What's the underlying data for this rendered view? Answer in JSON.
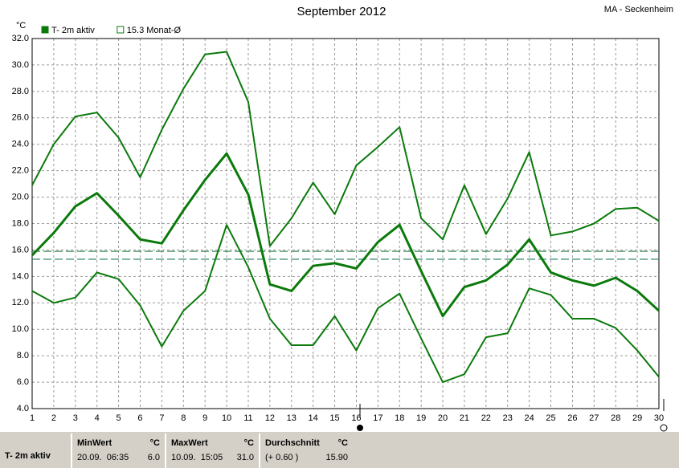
{
  "chart_data": {
    "type": "line",
    "title": "September 2012",
    "station": "MA - Seckenheim",
    "y_unit": "°C",
    "legend": [
      {
        "label": "T- 2m aktiv",
        "filled": true
      },
      {
        "label": "15.3 Monat-Ø",
        "filled": false
      }
    ],
    "x": [
      1,
      2,
      3,
      4,
      5,
      6,
      7,
      8,
      9,
      10,
      11,
      12,
      13,
      14,
      15,
      16,
      17,
      18,
      19,
      20,
      21,
      22,
      23,
      24,
      25,
      26,
      27,
      28,
      29,
      30
    ],
    "xlim": [
      1,
      30
    ],
    "xticks": [
      1,
      2,
      3,
      4,
      5,
      6,
      7,
      8,
      9,
      10,
      11,
      12,
      13,
      14,
      15,
      16,
      17,
      18,
      19,
      20,
      21,
      22,
      23,
      24,
      25,
      26,
      27,
      28,
      29,
      30
    ],
    "ylim": [
      4,
      32
    ],
    "yticks": [
      {
        "value": 4,
        "label": "4.0"
      },
      {
        "value": 6,
        "label": "6.0"
      },
      {
        "value": 8,
        "label": "8.0"
      },
      {
        "value": 10,
        "label": "10.0"
      },
      {
        "value": 12,
        "label": "12.0"
      },
      {
        "value": 14,
        "label": "14.0"
      },
      {
        "value": 16,
        "label": "16.0"
      },
      {
        "value": 18,
        "label": "18.0"
      },
      {
        "value": 20,
        "label": "20.0"
      },
      {
        "value": 22,
        "label": "22.0"
      },
      {
        "value": 24,
        "label": "24.0"
      },
      {
        "value": 26,
        "label": "26.0"
      },
      {
        "value": 28,
        "label": "28.0"
      },
      {
        "value": 30,
        "label": "30.0"
      },
      {
        "value": 32,
        "label": "32.0"
      }
    ],
    "grid": true,
    "series": [
      {
        "color": "#0b7a0b",
        "width": 2,
        "values": [
          20.9,
          24.0,
          26.1,
          26.4,
          24.5,
          21.5,
          25.1,
          28.2,
          30.8,
          31.0,
          27.2,
          16.3,
          18.4,
          21.1,
          18.7,
          22.4,
          23.8,
          25.3,
          18.4,
          16.8,
          20.9,
          17.2,
          19.9,
          23.4,
          17.1,
          17.4,
          18.0,
          19.1,
          19.2,
          18.2
        ]
      },
      {
        "color": "#0b7a0b",
        "width": 3,
        "values": [
          15.6,
          17.3,
          19.3,
          20.3,
          18.6,
          16.8,
          16.5,
          19.0,
          21.3,
          23.3,
          20.2,
          13.4,
          12.9,
          14.8,
          15.0,
          14.6,
          16.6,
          17.9,
          14.4,
          11.0,
          13.2,
          13.7,
          14.9,
          16.8,
          14.3,
          13.7,
          13.3,
          13.9,
          12.9,
          11.4
        ]
      },
      {
        "color": "#0b7a0b",
        "width": 2,
        "values": [
          12.9,
          12.0,
          12.4,
          14.3,
          13.8,
          11.8,
          8.7,
          11.4,
          12.9,
          17.9,
          14.7,
          10.8,
          8.8,
          8.8,
          11.0,
          8.4,
          11.6,
          12.7,
          9.3,
          6.0,
          6.6,
          9.4,
          9.7,
          13.1,
          12.6,
          10.8,
          10.8,
          10.1,
          8.4,
          6.4
        ]
      }
    ],
    "reference_lines": [
      {
        "value": 15.9,
        "color": "#1a7a3a"
      },
      {
        "value": 15.3,
        "color": "#1a7a5a"
      }
    ]
  },
  "stats": {
    "label": "T- 2m aktiv",
    "cells": [
      {
        "header": "MinWert",
        "unit": "°C",
        "detail": "20.09.  06:35",
        "value": "6.0"
      },
      {
        "header": "MaxWert",
        "unit": "°C",
        "detail": "10.09.  15:05",
        "value": "31.0"
      },
      {
        "header": "Durchschnitt",
        "unit": "°C",
        "detail": "(+ 0.60 )",
        "value": "15.90"
      }
    ]
  }
}
